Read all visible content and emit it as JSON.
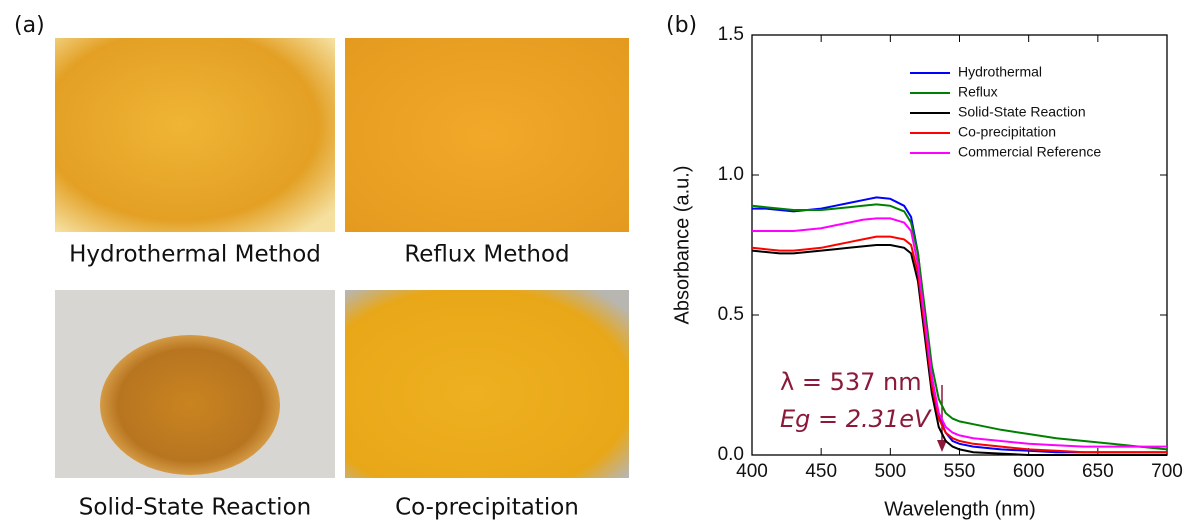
{
  "panel_a": {
    "label": "(a)",
    "captions": [
      "Hydrothermal Method",
      "Reflux Method",
      "Solid-State Reaction",
      "Co-precipitation"
    ]
  },
  "chart_data": {
    "type": "line",
    "panel_label": "(b)",
    "x_label": "Wavelength (nm)",
    "y_label": "Absorbance (a.u.)",
    "annotations": [
      "λ = 537 nm",
      "Eg = 2.31eV"
    ],
    "xlim": [
      400,
      700
    ],
    "xticks": [
      400,
      450,
      500,
      550,
      600,
      650,
      700
    ],
    "ylim": [
      0,
      1.5
    ],
    "yticks": [
      {
        "value": 0,
        "label": "0.0"
      },
      {
        "value": 0.5,
        "label": "0.5"
      },
      {
        "value": 1,
        "label": "1.0"
      },
      {
        "value": 1.5,
        "label": "1.5"
      }
    ],
    "legend": "upper right",
    "x": [
      400,
      410,
      420,
      430,
      440,
      450,
      460,
      470,
      480,
      490,
      500,
      510,
      515,
      520,
      525,
      530,
      535,
      540,
      545,
      550,
      560,
      580,
      600,
      620,
      640,
      660,
      680,
      700
    ],
    "series": [
      {
        "name": "Hydrothermal",
        "color": "#0000ff",
        "values": [
          0.88,
          0.88,
          0.875,
          0.87,
          0.875,
          0.88,
          0.89,
          0.9,
          0.91,
          0.92,
          0.915,
          0.89,
          0.85,
          0.72,
          0.5,
          0.28,
          0.14,
          0.08,
          0.05,
          0.04,
          0.03,
          0.02,
          0.015,
          0.01,
          0.01,
          0.01,
          0.01,
          0.01
        ]
      },
      {
        "name": "Reflux",
        "color": "#008000",
        "values": [
          0.89,
          0.885,
          0.88,
          0.875,
          0.875,
          0.875,
          0.88,
          0.885,
          0.89,
          0.895,
          0.89,
          0.87,
          0.83,
          0.72,
          0.52,
          0.32,
          0.2,
          0.15,
          0.13,
          0.12,
          0.11,
          0.09,
          0.075,
          0.06,
          0.05,
          0.04,
          0.03,
          0.02
        ]
      },
      {
        "name": "Solid-State Reaction",
        "color": "#000000",
        "values": [
          0.73,
          0.725,
          0.72,
          0.72,
          0.725,
          0.73,
          0.735,
          0.74,
          0.745,
          0.75,
          0.75,
          0.74,
          0.72,
          0.62,
          0.42,
          0.22,
          0.1,
          0.05,
          0.03,
          0.02,
          0.01,
          0.005,
          0,
          0,
          0,
          0,
          0,
          0
        ]
      },
      {
        "name": "Co-precipitation",
        "color": "#ff0000",
        "values": [
          0.74,
          0.735,
          0.73,
          0.73,
          0.735,
          0.74,
          0.75,
          0.76,
          0.77,
          0.78,
          0.78,
          0.77,
          0.75,
          0.65,
          0.45,
          0.25,
          0.13,
          0.08,
          0.06,
          0.05,
          0.04,
          0.03,
          0.02,
          0.015,
          0.01,
          0.01,
          0.01,
          0.01
        ]
      },
      {
        "name": "Commercial Reference",
        "color": "#ff00ff",
        "values": [
          0.8,
          0.8,
          0.8,
          0.8,
          0.805,
          0.81,
          0.82,
          0.83,
          0.84,
          0.845,
          0.845,
          0.83,
          0.8,
          0.68,
          0.48,
          0.28,
          0.15,
          0.1,
          0.08,
          0.07,
          0.06,
          0.05,
          0.04,
          0.035,
          0.03,
          0.03,
          0.03,
          0.03
        ]
      }
    ]
  }
}
